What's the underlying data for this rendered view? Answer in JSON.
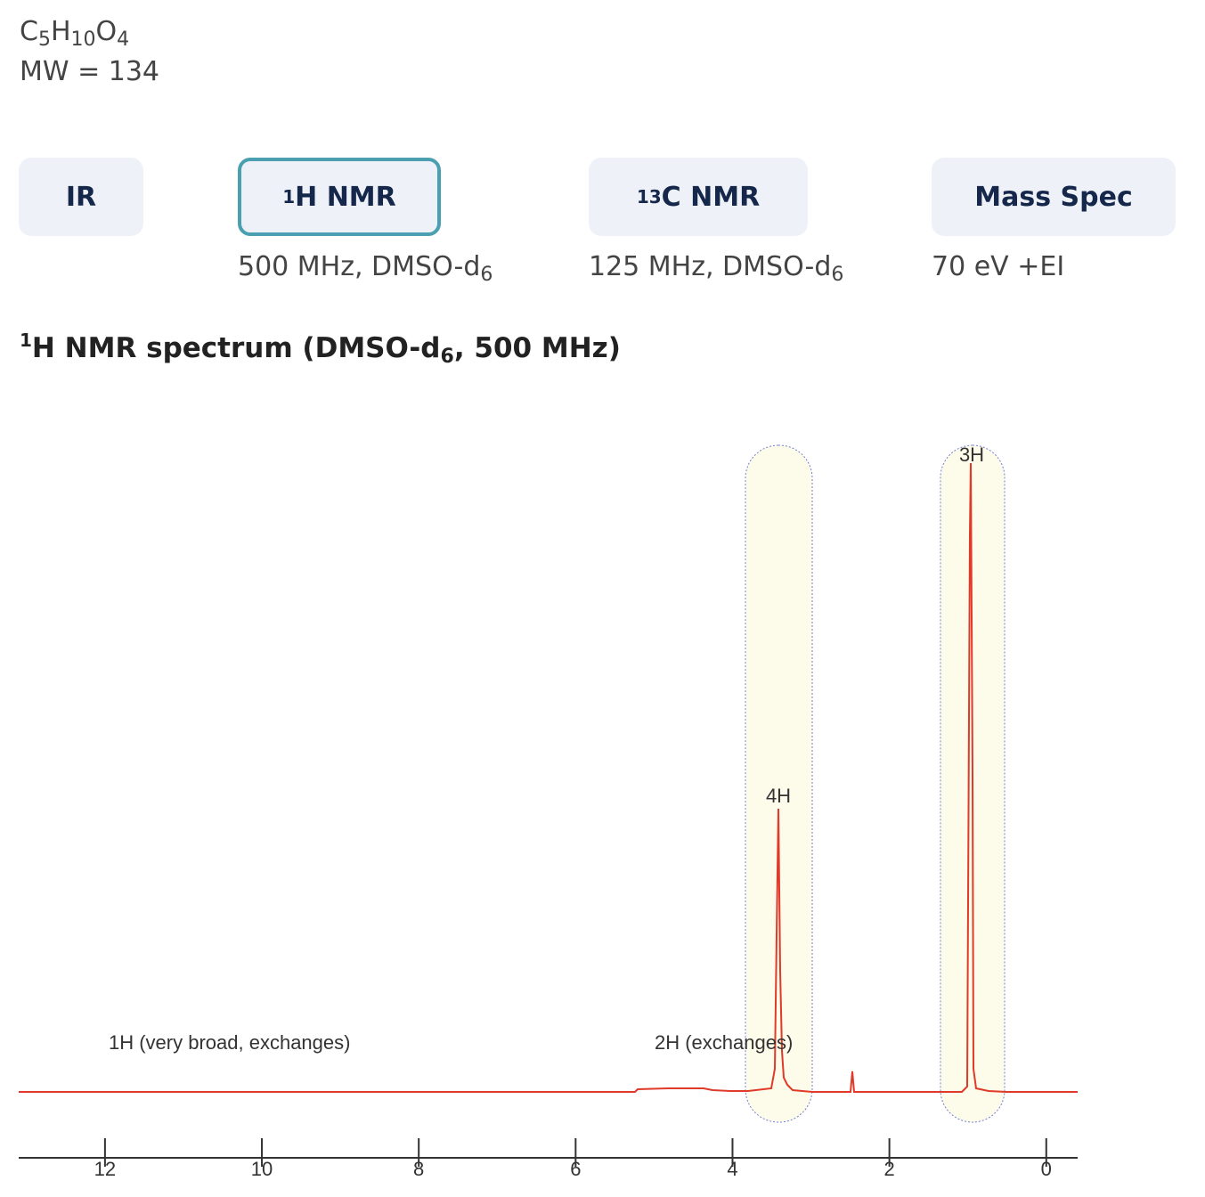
{
  "compound": {
    "formula": [
      "C",
      "5",
      "H",
      "10",
      "O",
      "4"
    ],
    "mw": "MW = 134"
  },
  "tabs": [
    {
      "label": "IR"
    },
    {
      "sup": "1",
      "label": "H NMR",
      "active": true,
      "note": [
        "500 MHz, DMSO-d",
        "6"
      ]
    },
    {
      "sup": "13",
      "label": "C NMR",
      "note": [
        "125 MHz, DMSO-d",
        "6"
      ]
    },
    {
      "label": "Mass Spec",
      "note": [
        "70 eV +EI"
      ]
    }
  ],
  "heading": [
    "1",
    "H NMR spectrum (DMSO-d",
    "6",
    ", 500 MHz)"
  ],
  "spectrum": {
    "xlim": [
      13.1,
      -0.4
    ],
    "xticks": [
      12,
      10,
      8,
      6,
      4,
      2,
      0
    ],
    "annotations": [
      "1H (very broad, exchanges)",
      "2H (exchanges)",
      "4H",
      "3H"
    ]
  }
}
